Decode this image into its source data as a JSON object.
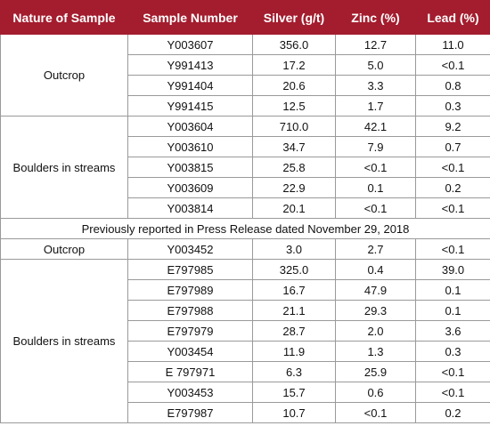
{
  "table": {
    "header": [
      "Nature of Sample",
      "Sample Number",
      "Silver (g/t)",
      "Zinc (%)",
      "Lead (%)"
    ],
    "sections": [
      {
        "nature": "Outcrop",
        "rows": [
          [
            "Y003607",
            "356.0",
            "12.7",
            "11.0"
          ],
          [
            "Y991413",
            "17.2",
            "5.0",
            "<0.1"
          ],
          [
            "Y991404",
            "20.6",
            "3.3",
            "0.8"
          ],
          [
            "Y991415",
            "12.5",
            "1.7",
            "0.3"
          ]
        ]
      },
      {
        "nature": "Boulders in streams",
        "rows": [
          [
            "Y003604",
            "710.0",
            "42.1",
            "9.2"
          ],
          [
            "Y003610",
            "34.7",
            "7.9",
            "0.7"
          ],
          [
            "Y003815",
            "25.8",
            "<0.1",
            "<0.1"
          ],
          [
            "Y003609",
            "22.9",
            "0.1",
            "0.2"
          ],
          [
            "Y003814",
            "20.1",
            "<0.1",
            "<0.1"
          ]
        ]
      },
      {
        "note": "Previously reported in Press Release dated November 29, 2018"
      },
      {
        "nature": "Outcrop",
        "rows": [
          [
            "Y003452",
            "3.0",
            "2.7",
            "<0.1"
          ]
        ]
      },
      {
        "nature": "Boulders in streams",
        "rows": [
          [
            "E797985",
            "325.0",
            "0.4",
            "39.0"
          ],
          [
            "E797989",
            "16.7",
            "47.9",
            "0.1"
          ],
          [
            "E797988",
            "21.1",
            "29.3",
            "0.1"
          ],
          [
            "E797979",
            "28.7",
            "2.0",
            "3.6"
          ],
          [
            "Y003454",
            "11.9",
            "1.3",
            "0.3"
          ],
          [
            "E 797971",
            "6.3",
            "25.9",
            "<0.1"
          ],
          [
            "Y003453",
            "15.7",
            "0.6",
            "<0.1"
          ],
          [
            "E797987",
            "10.7",
            "<0.1",
            "0.2"
          ]
        ]
      }
    ]
  }
}
